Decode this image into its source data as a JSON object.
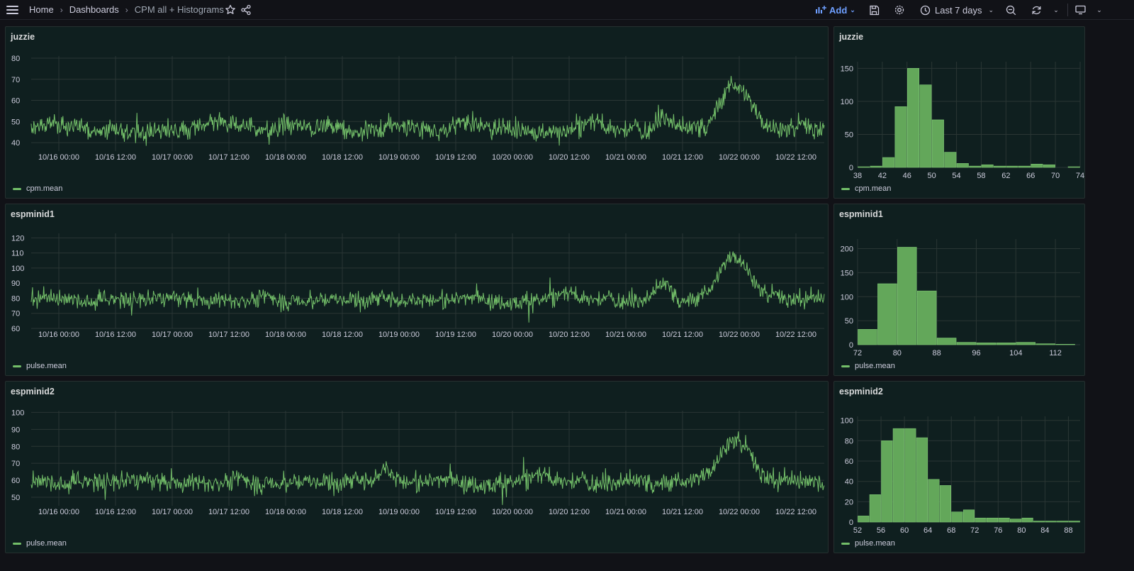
{
  "breadcrumb": {
    "home": "Home",
    "dashboards": "Dashboards",
    "current": "CPM all + Histograms"
  },
  "toolbar": {
    "add_label": "Add",
    "time_range": "Last 7 days"
  },
  "colors": {
    "series": "#73bf69",
    "bar": "#63a75a",
    "panel_bg": "#0f1f1f",
    "grid": "#2a3634"
  },
  "panels": [
    {
      "title": "juzzie",
      "legend": "cpm.mean",
      "chart_data": {
        "type": "line",
        "title": "juzzie",
        "series": [
          {
            "name": "cpm.mean"
          }
        ],
        "y_ticks": [
          40,
          50,
          60,
          70,
          80
        ],
        "ylim": [
          36,
          81
        ],
        "x_ticks": [
          "10/16 00:00",
          "10/16 12:00",
          "10/17 00:00",
          "10/17 12:00",
          "10/18 00:00",
          "10/18 12:00",
          "10/19 00:00",
          "10/19 12:00",
          "10/20 00:00",
          "10/20 12:00",
          "10/21 00:00",
          "10/21 12:00",
          "10/22 00:00",
          "10/22 12:00"
        ],
        "baseline": 47,
        "noise": 4.2,
        "peak": {
          "hour": 143,
          "height": 21
        },
        "bump": {
          "hour": 128,
          "height": 7
        }
      }
    },
    {
      "title": "juzzie",
      "legend": "cpm.mean",
      "chart_data": {
        "type": "bar",
        "title": "juzzie",
        "series": [
          {
            "name": "cpm.mean"
          }
        ],
        "x_ticks": [
          38,
          42,
          46,
          50,
          54,
          58,
          62,
          66,
          70,
          74
        ],
        "y_ticks": [
          0,
          50,
          100,
          150
        ],
        "xlim": [
          38,
          74
        ],
        "ylim": [
          0,
          160
        ],
        "bin_width": 2,
        "bin_starts": [
          38,
          40,
          42,
          44,
          46,
          48,
          50,
          52,
          54,
          56,
          58,
          60,
          62,
          64,
          66,
          68,
          70,
          72
        ],
        "values": [
          1,
          2,
          15,
          92,
          150,
          125,
          72,
          23,
          6,
          2,
          4,
          2,
          2,
          2,
          5,
          4,
          0,
          1
        ]
      }
    },
    {
      "title": "espminid1",
      "legend": "pulse.mean",
      "chart_data": {
        "type": "line",
        "title": "espminid1",
        "series": [
          {
            "name": "pulse.mean"
          }
        ],
        "y_ticks": [
          60,
          70,
          80,
          90,
          100,
          110,
          120
        ],
        "ylim": [
          60,
          123
        ],
        "x_ticks": [
          "10/16 00:00",
          "10/16 12:00",
          "10/17 00:00",
          "10/17 12:00",
          "10/18 00:00",
          "10/18 12:00",
          "10/19 00:00",
          "10/19 12:00",
          "10/20 00:00",
          "10/20 12:00",
          "10/21 00:00",
          "10/21 12:00",
          "10/22 00:00",
          "10/22 12:00"
        ],
        "baseline": 80,
        "noise": 5,
        "peak": {
          "hour": 143,
          "height": 28
        },
        "bump": {
          "hour": 128,
          "height": 10
        }
      }
    },
    {
      "title": "espminid1",
      "legend": "pulse.mean",
      "chart_data": {
        "type": "bar",
        "title": "espminid1",
        "series": [
          {
            "name": "pulse.mean"
          }
        ],
        "x_ticks": [
          72,
          80,
          88,
          96,
          104,
          112
        ],
        "y_ticks": [
          0,
          50,
          100,
          150,
          200
        ],
        "xlim": [
          72,
          117
        ],
        "ylim": [
          0,
          220
        ],
        "bin_width": 4,
        "bin_starts": [
          72,
          76,
          80,
          84,
          88,
          92,
          96,
          100,
          104,
          108,
          112
        ],
        "values": [
          32,
          127,
          203,
          112,
          14,
          5,
          4,
          4,
          5,
          2,
          1
        ]
      }
    },
    {
      "title": "espminid2",
      "legend": "pulse.mean",
      "chart_data": {
        "type": "line",
        "title": "espminid2",
        "series": [
          {
            "name": "pulse.mean"
          }
        ],
        "y_ticks": [
          50,
          60,
          70,
          80,
          90,
          100
        ],
        "ylim": [
          45,
          101
        ],
        "x_ticks": [
          "10/16 00:00",
          "10/16 12:00",
          "10/17 00:00",
          "10/17 12:00",
          "10/18 00:00",
          "10/18 12:00",
          "10/19 00:00",
          "10/19 12:00",
          "10/20 00:00",
          "10/20 12:00",
          "10/21 00:00",
          "10/21 12:00",
          "10/22 00:00",
          "10/22 12:00"
        ],
        "baseline": 60,
        "noise": 5,
        "peak": {
          "hour": 143,
          "height": 24
        },
        "bump": {
          "hour": 69,
          "height": 8
        }
      }
    },
    {
      "title": "espminid2",
      "legend": "pulse.mean",
      "chart_data": {
        "type": "bar",
        "title": "espminid2",
        "series": [
          {
            "name": "pulse.mean"
          }
        ],
        "x_ticks": [
          52,
          56,
          60,
          64,
          68,
          72,
          76,
          80,
          84,
          88
        ],
        "y_ticks": [
          0,
          20,
          40,
          60,
          80,
          100
        ],
        "xlim": [
          52,
          90
        ],
        "ylim": [
          0,
          104
        ],
        "bin_width": 2,
        "bin_starts": [
          52,
          54,
          56,
          58,
          60,
          62,
          64,
          66,
          68,
          70,
          72,
          74,
          76,
          78,
          80,
          82,
          84,
          86,
          88
        ],
        "values": [
          6,
          27,
          80,
          92,
          92,
          83,
          42,
          36,
          10,
          12,
          4,
          4,
          4,
          3,
          4,
          1,
          1,
          1,
          1
        ]
      }
    }
  ]
}
